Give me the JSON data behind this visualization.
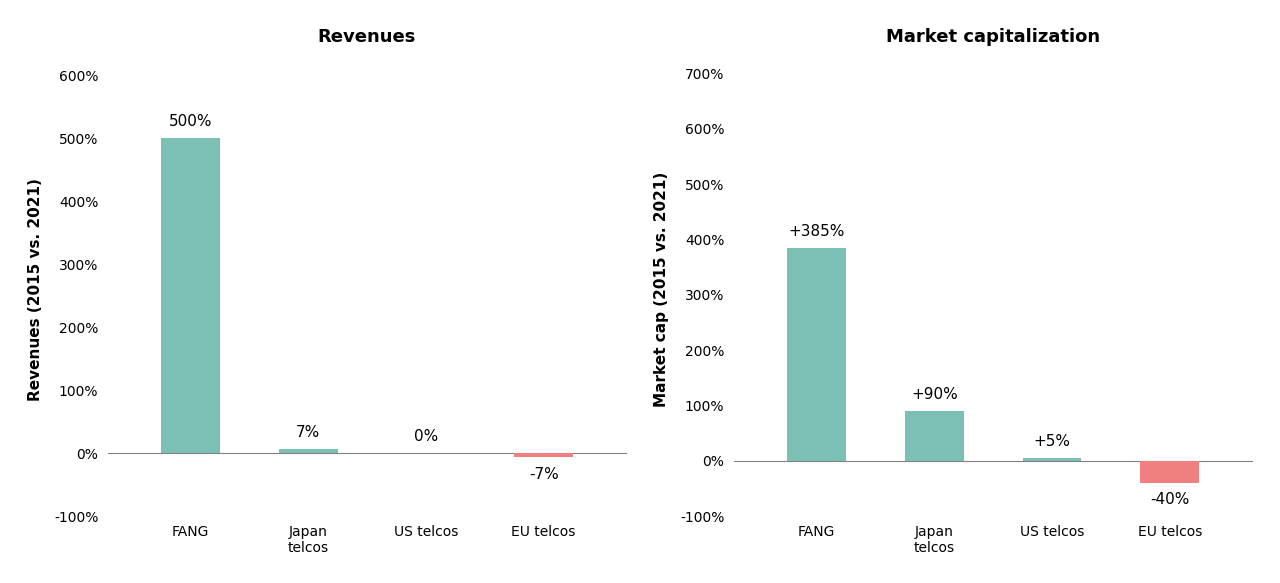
{
  "left_title": "Revenues",
  "right_title": "Market capitalization",
  "left_ylabel": "Revenues (2015 vs. 2021)",
  "right_ylabel": "Market cap (2015 vs. 2021)",
  "categories": [
    "FANG",
    "Japan\ntelcos",
    "US telcos",
    "EU telcos"
  ],
  "revenues": [
    500,
    7,
    0,
    -7
  ],
  "rev_labels": [
    "500%",
    "7%",
    "0%",
    "-7%"
  ],
  "market_cap": [
    385,
    90,
    5,
    -40
  ],
  "mc_labels": [
    "+385%",
    "+90%",
    "+5%",
    "-40%"
  ],
  "positive_color": "#7BBFB5",
  "negative_color": "#F08080",
  "left_ylim": [
    -100,
    620
  ],
  "right_ylim": [
    -100,
    720
  ],
  "left_yticks": [
    -100,
    0,
    100,
    200,
    300,
    400,
    500,
    600
  ],
  "right_yticks": [
    -100,
    0,
    100,
    200,
    300,
    400,
    500,
    600,
    700
  ],
  "bg_color": "#FFFFFF",
  "bar_width": 0.5,
  "title_fontsize": 13,
  "label_fontsize": 11,
  "tick_fontsize": 10,
  "ylabel_fontsize": 11
}
